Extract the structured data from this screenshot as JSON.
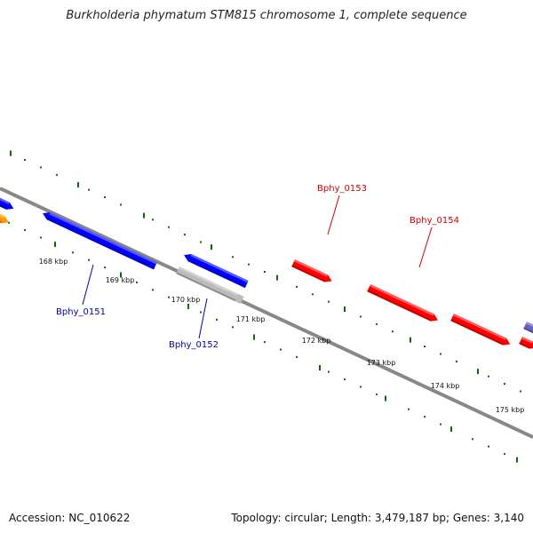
{
  "title": "Burkholderia phymatum STM815 chromosome 1, complete sequence",
  "footer": {
    "accession": "Accession: NC_010622",
    "summary": "Topology: circular; Length: 3,479,187 bp; Genes: 3,140"
  },
  "colors": {
    "forward_strand": "#ff0000",
    "reverse_strand": "#0000ff",
    "other_gene": "#ff9900",
    "pseudo_gene": "#bbbbbb",
    "purple_gene": "#6a62c0",
    "backbone": "#888888",
    "tick": "#116611",
    "forward_label": "#cc0000",
    "reverse_label": "#000099"
  },
  "ticks": [
    {
      "label": "168 kbp"
    },
    {
      "label": "169 kbp"
    },
    {
      "label": "170 kbp"
    },
    {
      "label": "171 kbp"
    },
    {
      "label": "172 kbp"
    },
    {
      "label": "173 kbp"
    },
    {
      "label": "174 kbp"
    },
    {
      "label": "175 kbp"
    }
  ],
  "genes": [
    {
      "name": "",
      "strand": "reverse",
      "color": "#0000ff"
    },
    {
      "name": "",
      "strand": "reverse",
      "color": "#ff9900"
    },
    {
      "name": "Bphy_0151",
      "strand": "reverse",
      "color": "#0000ff"
    },
    {
      "name": "Bphy_0152",
      "strand": "reverse",
      "color": "#0000ff"
    },
    {
      "name": "",
      "strand": "reverse",
      "color": "#bbbbbb"
    },
    {
      "name": "Bphy_0153",
      "strand": "forward",
      "color": "#ff0000"
    },
    {
      "name": "Bphy_0154",
      "strand": "forward",
      "color": "#ff0000"
    },
    {
      "name": "",
      "strand": "forward",
      "color": "#ff0000"
    },
    {
      "name": "",
      "strand": "forward",
      "color": "#6a62c0"
    },
    {
      "name": "",
      "strand": "forward",
      "color": "#ff0000"
    }
  ]
}
